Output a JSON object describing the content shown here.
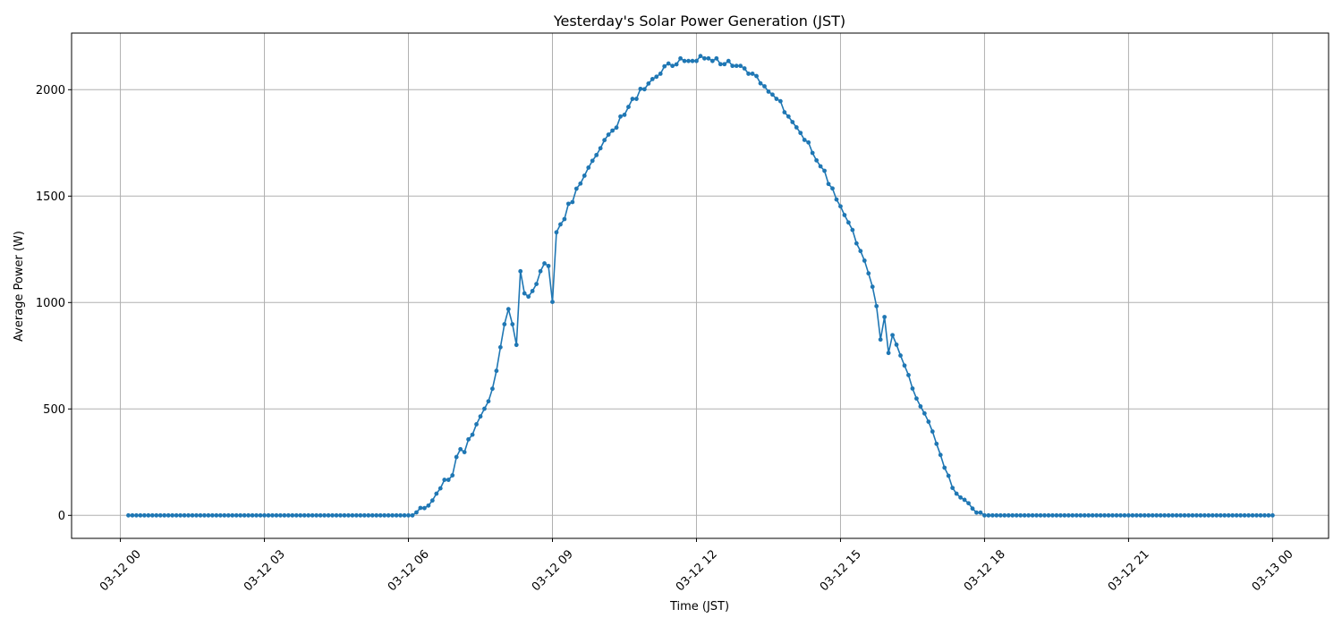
{
  "chart_data": {
    "type": "line",
    "title": "Yesterday's Solar Power Generation (JST)",
    "xlabel": "Time (JST)",
    "ylabel": "Average Power (W)",
    "grid": true,
    "marker": "circle",
    "color": "#1f77b4",
    "ylim": [
      -108,
      2266
    ],
    "xlim": [
      "03-11 22:59",
      "03-13 01:10"
    ],
    "x_ticks": [
      "03-12 00",
      "03-12 03",
      "03-12 06",
      "03-12 09",
      "03-12 12",
      "03-12 15",
      "03-12 18",
      "03-12 21",
      "03-13 00"
    ],
    "y_ticks": [
      0,
      500,
      1000,
      1500,
      2000
    ],
    "series": [
      {
        "x": [
          "03-12 00:10",
          "03-12 00:15",
          "03-12 00:20",
          "03-12 00:25",
          "03-12 00:30",
          "03-12 00:35",
          "03-12 00:40",
          "03-12 00:45",
          "03-12 00:50",
          "03-12 00:55",
          "03-12 01:00",
          "03-12 01:05",
          "03-12 01:10",
          "03-12 01:15",
          "03-12 01:20",
          "03-12 01:25",
          "03-12 01:30",
          "03-12 01:35",
          "03-12 01:40",
          "03-12 01:45",
          "03-12 01:50",
          "03-12 01:55",
          "03-12 02:00",
          "03-12 02:05",
          "03-12 02:10",
          "03-12 02:15",
          "03-12 02:20",
          "03-12 02:25",
          "03-12 02:30",
          "03-12 02:35",
          "03-12 02:40",
          "03-12 02:45",
          "03-12 02:50",
          "03-12 02:55",
          "03-12 03:00",
          "03-12 03:05",
          "03-12 03:10",
          "03-12 03:15",
          "03-12 03:20",
          "03-12 03:25",
          "03-12 03:30",
          "03-12 03:35",
          "03-12 03:40",
          "03-12 03:45",
          "03-12 03:50",
          "03-12 03:55",
          "03-12 04:00",
          "03-12 04:05",
          "03-12 04:10",
          "03-12 04:15",
          "03-12 04:20",
          "03-12 04:25",
          "03-12 04:30",
          "03-12 04:35",
          "03-12 04:40",
          "03-12 04:45",
          "03-12 04:50",
          "03-12 04:55",
          "03-12 05:00",
          "03-12 05:05",
          "03-12 05:10",
          "03-12 05:15",
          "03-12 05:20",
          "03-12 05:25",
          "03-12 05:30",
          "03-12 05:35",
          "03-12 05:40",
          "03-12 05:45",
          "03-12 05:50",
          "03-12 05:55",
          "03-12 06:00",
          "03-12 06:05",
          "03-12 06:10",
          "03-12 06:15",
          "03-12 06:20",
          "03-12 06:25",
          "03-12 06:30",
          "03-12 06:35",
          "03-12 06:40",
          "03-12 06:45",
          "03-12 06:50",
          "03-12 06:55",
          "03-12 07:00",
          "03-12 07:05",
          "03-12 07:10",
          "03-12 07:15",
          "03-12 07:20",
          "03-12 07:25",
          "03-12 07:30",
          "03-12 07:35",
          "03-12 07:40",
          "03-12 07:45",
          "03-12 07:50",
          "03-12 07:55",
          "03-12 08:00",
          "03-12 08:05",
          "03-12 08:10",
          "03-12 08:15",
          "03-12 08:20",
          "03-12 08:25",
          "03-12 08:30",
          "03-12 08:35",
          "03-12 08:40",
          "03-12 08:45",
          "03-12 08:50",
          "03-12 08:55",
          "03-12 09:00",
          "03-12 09:05",
          "03-12 09:10",
          "03-12 09:15",
          "03-12 09:20",
          "03-12 09:25",
          "03-12 09:30",
          "03-12 09:35",
          "03-12 09:40",
          "03-12 09:45",
          "03-12 09:50",
          "03-12 09:55",
          "03-12 10:00",
          "03-12 10:05",
          "03-12 10:10",
          "03-12 10:15",
          "03-12 10:20",
          "03-12 10:25",
          "03-12 10:30",
          "03-12 10:35",
          "03-12 10:40",
          "03-12 10:45",
          "03-12 10:50",
          "03-12 10:55",
          "03-12 11:00",
          "03-12 11:05",
          "03-12 11:10",
          "03-12 11:15",
          "03-12 11:20",
          "03-12 11:25",
          "03-12 11:30",
          "03-12 11:35",
          "03-12 11:40",
          "03-12 11:45",
          "03-12 11:50",
          "03-12 11:55",
          "03-12 12:00",
          "03-12 12:05",
          "03-12 12:10",
          "03-12 12:15",
          "03-12 12:20",
          "03-12 12:25",
          "03-12 12:30",
          "03-12 12:35",
          "03-12 12:40",
          "03-12 12:45",
          "03-12 12:50",
          "03-12 12:55",
          "03-12 13:00",
          "03-12 13:05",
          "03-12 13:10",
          "03-12 13:15",
          "03-12 13:20",
          "03-12 13:25",
          "03-12 13:30",
          "03-12 13:35",
          "03-12 13:40",
          "03-12 13:45",
          "03-12 13:50",
          "03-12 13:55",
          "03-12 14:00",
          "03-12 14:05",
          "03-12 14:10",
          "03-12 14:15",
          "03-12 14:20",
          "03-12 14:25",
          "03-12 14:30",
          "03-12 14:35",
          "03-12 14:40",
          "03-12 14:45",
          "03-12 14:50",
          "03-12 14:55",
          "03-12 15:00",
          "03-12 15:05",
          "03-12 15:10",
          "03-12 15:15",
          "03-12 15:20",
          "03-12 15:25",
          "03-12 15:30",
          "03-12 15:35",
          "03-12 15:40",
          "03-12 15:45",
          "03-12 15:50",
          "03-12 15:55",
          "03-12 16:00",
          "03-12 16:05",
          "03-12 16:10",
          "03-12 16:15",
          "03-12 16:20",
          "03-12 16:25",
          "03-12 16:30",
          "03-12 16:35",
          "03-12 16:40",
          "03-12 16:45",
          "03-12 16:50",
          "03-12 16:55",
          "03-12 17:00",
          "03-12 17:05",
          "03-12 17:10",
          "03-12 17:15",
          "03-12 17:20",
          "03-12 17:25",
          "03-12 17:30",
          "03-12 17:35",
          "03-12 17:40",
          "03-12 17:45",
          "03-12 17:50",
          "03-12 17:55",
          "03-12 18:00",
          "03-12 18:05",
          "03-12 18:10",
          "03-12 18:15",
          "03-12 18:20",
          "03-12 18:25",
          "03-12 18:30",
          "03-12 18:35",
          "03-12 18:40",
          "03-12 18:45",
          "03-12 18:50",
          "03-12 18:55",
          "03-12 19:00",
          "03-12 19:05",
          "03-12 19:10",
          "03-12 19:15",
          "03-12 19:20",
          "03-12 19:25",
          "03-12 19:30",
          "03-12 19:35",
          "03-12 19:40",
          "03-12 19:45",
          "03-12 19:50",
          "03-12 19:55",
          "03-12 20:00",
          "03-12 20:05",
          "03-12 20:10",
          "03-12 20:15",
          "03-12 20:20",
          "03-12 20:25",
          "03-12 20:30",
          "03-12 20:35",
          "03-12 20:40",
          "03-12 20:45",
          "03-12 20:50",
          "03-12 20:55",
          "03-12 21:00",
          "03-12 21:05",
          "03-12 21:10",
          "03-12 21:15",
          "03-12 21:20",
          "03-12 21:25",
          "03-12 21:30",
          "03-12 21:35",
          "03-12 21:40",
          "03-12 21:45",
          "03-12 21:50",
          "03-12 21:55",
          "03-12 22:00",
          "03-12 22:05",
          "03-12 22:10",
          "03-12 22:15",
          "03-12 22:20",
          "03-12 22:25",
          "03-12 22:30",
          "03-12 22:35",
          "03-12 22:40",
          "03-12 22:45",
          "03-12 22:50",
          "03-12 22:55",
          "03-12 23:00",
          "03-12 23:05",
          "03-12 23:10",
          "03-12 23:15",
          "03-12 23:20",
          "03-12 23:25",
          "03-12 23:30",
          "03-12 23:35",
          "03-12 23:40",
          "03-12 23:45",
          "03-12 23:50",
          "03-12 23:55",
          "03-13 00:00"
        ],
        "y": [
          0,
          0,
          0,
          0,
          0,
          0,
          0,
          0,
          0,
          0,
          0,
          0,
          0,
          0,
          0,
          0,
          0,
          0,
          0,
          0,
          0,
          0,
          0,
          0,
          0,
          0,
          0,
          0,
          0,
          0,
          0,
          0,
          0,
          0,
          0,
          0,
          0,
          0,
          0,
          0,
          0,
          0,
          0,
          0,
          0,
          0,
          0,
          0,
          0,
          0,
          0,
          0,
          0,
          0,
          0,
          0,
          0,
          0,
          0,
          0,
          0,
          0,
          0,
          0,
          0,
          0,
          0,
          0,
          0,
          0,
          0,
          0,
          14,
          35,
          34,
          46,
          70,
          102,
          127,
          167,
          167,
          188,
          274,
          311,
          297,
          357,
          379,
          428,
          465,
          501,
          536,
          595,
          679,
          790,
          898,
          969,
          898,
          801,
          1147,
          1043,
          1028,
          1054,
          1087,
          1147,
          1184,
          1172,
          1003,
          1330,
          1367,
          1392,
          1464,
          1472,
          1535,
          1559,
          1596,
          1634,
          1666,
          1693,
          1725,
          1763,
          1789,
          1808,
          1822,
          1874,
          1882,
          1919,
          1957,
          1957,
          2004,
          2002,
          2029,
          2050,
          2061,
          2075,
          2110,
          2123,
          2112,
          2119,
          2147,
          2135,
          2135,
          2135,
          2135,
          2158,
          2147,
          2147,
          2135,
          2147,
          2120,
          2120,
          2135,
          2112,
          2112,
          2112,
          2100,
          2075,
          2075,
          2064,
          2030,
          2016,
          1991,
          1977,
          1957,
          1946,
          1894,
          1874,
          1848,
          1823,
          1797,
          1764,
          1752,
          1703,
          1668,
          1640,
          1619,
          1557,
          1536,
          1484,
          1452,
          1411,
          1376,
          1341,
          1278,
          1242,
          1197,
          1137,
          1074,
          983,
          826,
          932,
          763,
          847,
          802,
          751,
          704,
          659,
          596,
          549,
          512,
          479,
          440,
          394,
          336,
          284,
          224,
          186,
          129,
          102,
          84,
          73,
          57,
          32,
          13,
          13,
          0,
          0,
          0,
          0,
          0,
          0,
          0,
          0,
          0,
          0,
          0,
          0,
          0,
          0,
          0,
          0,
          0,
          0,
          0,
          0,
          0,
          0,
          0,
          0,
          0,
          0,
          0,
          0,
          0,
          0,
          0,
          0,
          0,
          0,
          0,
          0,
          0,
          0,
          0,
          0,
          0,
          0,
          0,
          0,
          0,
          0,
          0,
          0,
          0,
          0,
          0,
          0,
          0,
          0,
          0,
          0,
          0,
          0,
          0,
          0,
          0,
          0,
          0,
          0,
          0,
          0,
          0,
          0,
          0,
          0,
          0,
          0,
          0
        ]
      }
    ]
  }
}
